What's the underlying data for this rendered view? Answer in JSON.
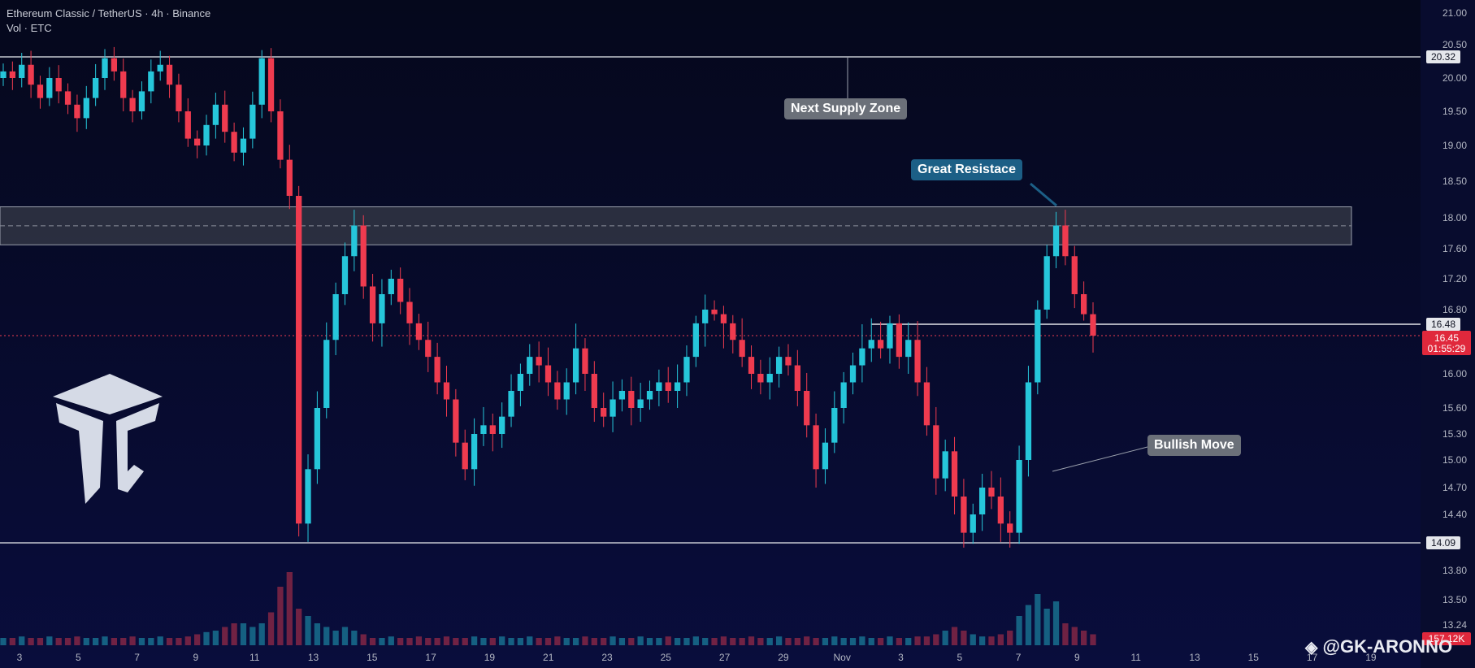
{
  "header": {
    "symbol_line": "Ethereum Classic / TetherUS · 4h · Binance",
    "volume_line": "Vol · ETC"
  },
  "annotations": {
    "supply": "Next Supply Zone",
    "resistance": "Great Resistace",
    "bullish": "Bullish Move"
  },
  "watermark": "@GK-ARONNO",
  "colors": {
    "background": "#070b2c",
    "bull": "#26c6da",
    "bear": "#ef3b4f",
    "callout_grey": "#6b7079",
    "callout_blue": "#1c5f86",
    "current_price_bg": "#e0283c"
  },
  "chart_data": {
    "type": "candlestick",
    "title": "Ethereum Classic / TetherUS · 4h · Binance",
    "timeframe": "4h",
    "y_ticks": [
      "21.00",
      "20.50",
      "20.00",
      "19.50",
      "19.00",
      "18.50",
      "18.00",
      "17.60",
      "17.20",
      "16.80",
      "16.00",
      "15.60",
      "15.30",
      "15.00",
      "14.70",
      "14.40",
      "13.80",
      "13.50",
      "13.24"
    ],
    "x_ticks": [
      "3",
      "5",
      "7",
      "9",
      "11",
      "13",
      "15",
      "17",
      "19",
      "21",
      "23",
      "25",
      "27",
      "29",
      "Nov",
      "3",
      "5",
      "7",
      "9",
      "11",
      "13",
      "15",
      "17",
      "19"
    ],
    "price_labels": [
      {
        "value": "20.32",
        "kind": "level"
      },
      {
        "value": "16.48",
        "kind": "level"
      },
      {
        "value": "14.09",
        "kind": "level"
      }
    ],
    "current_price": {
      "value": "16.45",
      "countdown": "01:55:29"
    },
    "volume_label": "157.12K",
    "levels": [
      20.32,
      16.48,
      14.09
    ],
    "resistance_zone": [
      17.65,
      18.15
    ],
    "close_series": [
      20.1,
      20.0,
      20.2,
      19.9,
      19.7,
      20.0,
      19.8,
      19.6,
      19.4,
      19.7,
      20.0,
      20.3,
      20.1,
      19.7,
      19.5,
      19.8,
      20.1,
      20.2,
      19.9,
      19.5,
      19.1,
      19.0,
      19.3,
      19.6,
      19.2,
      18.9,
      19.1,
      19.6,
      20.3,
      19.5,
      18.8,
      18.3,
      14.3,
      14.9,
      15.6,
      16.4,
      17.0,
      17.5,
      17.9,
      17.1,
      16.5,
      17.0,
      17.2,
      16.9,
      16.5,
      16.4,
      16.2,
      15.9,
      15.7,
      15.2,
      14.9,
      15.3,
      15.4,
      15.3,
      15.5,
      15.8,
      16.0,
      16.2,
      16.1,
      15.9,
      15.7,
      15.9,
      16.3,
      16.0,
      15.6,
      15.5,
      15.7,
      15.8,
      15.6,
      15.7,
      15.8,
      15.9,
      15.8,
      15.9,
      16.2,
      16.5,
      16.8,
      16.7,
      16.5,
      16.4,
      16.2,
      16.0,
      15.9,
      16.0,
      16.2,
      16.1,
      15.8,
      15.4,
      14.9,
      15.2,
      15.6,
      15.9,
      16.1,
      16.3,
      16.4,
      16.3,
      16.5,
      16.2,
      16.4,
      15.9,
      15.4,
      14.8,
      15.1,
      14.6,
      14.2,
      14.4,
      14.7,
      14.6,
      14.3,
      14.2,
      15.0,
      15.9,
      16.8,
      17.5,
      17.9,
      17.5,
      17.0,
      16.7,
      16.45
    ],
    "volume_series": [
      0.1,
      0.1,
      0.12,
      0.1,
      0.1,
      0.12,
      0.1,
      0.1,
      0.12,
      0.1,
      0.1,
      0.12,
      0.1,
      0.1,
      0.12,
      0.1,
      0.1,
      0.12,
      0.1,
      0.1,
      0.12,
      0.15,
      0.18,
      0.2,
      0.25,
      0.3,
      0.3,
      0.25,
      0.3,
      0.45,
      0.8,
      1.0,
      0.5,
      0.4,
      0.3,
      0.25,
      0.2,
      0.25,
      0.2,
      0.15,
      0.1,
      0.1,
      0.12,
      0.1,
      0.1,
      0.12,
      0.1,
      0.1,
      0.12,
      0.1,
      0.1,
      0.12,
      0.1,
      0.1,
      0.12,
      0.1,
      0.1,
      0.12,
      0.1,
      0.1,
      0.12,
      0.1,
      0.1,
      0.12,
      0.1,
      0.1,
      0.12,
      0.1,
      0.1,
      0.12,
      0.1,
      0.1,
      0.12,
      0.1,
      0.1,
      0.12,
      0.1,
      0.1,
      0.12,
      0.1,
      0.1,
      0.12,
      0.1,
      0.1,
      0.12,
      0.1,
      0.1,
      0.12,
      0.1,
      0.1,
      0.12,
      0.1,
      0.1,
      0.12,
      0.1,
      0.1,
      0.12,
      0.1,
      0.1,
      0.12,
      0.12,
      0.15,
      0.2,
      0.25,
      0.2,
      0.15,
      0.12,
      0.12,
      0.15,
      0.2,
      0.4,
      0.55,
      0.7,
      0.5,
      0.6,
      0.3,
      0.25,
      0.2,
      0.15
    ]
  }
}
